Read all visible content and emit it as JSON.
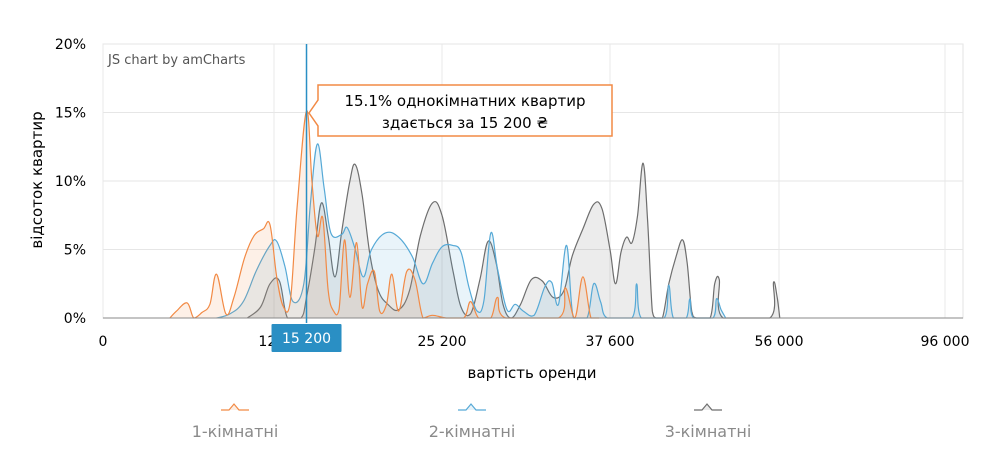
{
  "chart_data": {
    "type": "area",
    "watermark": "JS chart by amCharts",
    "xlabel": "вартість оренди",
    "ylabel": "відсоток квартир",
    "y_ticks": [
      "0%",
      "5%",
      "10%",
      "15%",
      "20%"
    ],
    "ylim": [
      0,
      20
    ],
    "x_tick_labels": [
      "0",
      "12 8",
      "25 200",
      "37 600",
      "56 000",
      "96 000"
    ],
    "grid": true,
    "legend_position": "bottom",
    "cursor": {
      "value": 15200,
      "label": "15 200"
    },
    "tooltip": {
      "line1": "15.1% однокімнатних квартир",
      "line2": "здається за 15 200 ₴"
    },
    "colors": {
      "1-кімнатні": "#f28a45",
      "2-кімнатні": "#56a9d6",
      "3-кімнатні": "#6e6e6e",
      "cursor": "#2a8fc4",
      "cursor_label_bg": "#2a8fc4"
    },
    "series": [
      {
        "name": "1-кімнатні",
        "points": [
          [
            5000,
            0
          ],
          [
            5500,
            0.5
          ],
          [
            6300,
            1.1
          ],
          [
            6800,
            0
          ],
          [
            7400,
            0.4
          ],
          [
            8000,
            1
          ],
          [
            8500,
            3.2
          ],
          [
            9200,
            0.3
          ],
          [
            9800,
            1.5
          ],
          [
            10600,
            4.4
          ],
          [
            11300,
            6
          ],
          [
            12000,
            6.5
          ],
          [
            12500,
            6.8
          ],
          [
            13000,
            3
          ],
          [
            13500,
            0.8
          ],
          [
            14000,
            1.2
          ],
          [
            14500,
            8
          ],
          [
            15200,
            15.1
          ],
          [
            15600,
            10
          ],
          [
            16000,
            6
          ],
          [
            16400,
            7.3
          ],
          [
            16800,
            2
          ],
          [
            17200,
            0.5
          ],
          [
            17600,
            0.6
          ],
          [
            18000,
            5.7
          ],
          [
            18400,
            1.5
          ],
          [
            18900,
            5.5
          ],
          [
            19300,
            0.8
          ],
          [
            19700,
            2.5
          ],
          [
            20200,
            3.4
          ],
          [
            20600,
            0.5
          ],
          [
            21100,
            1
          ],
          [
            21500,
            3.2
          ],
          [
            22000,
            0.5
          ],
          [
            22600,
            3.4
          ],
          [
            23200,
            2.8
          ],
          [
            23800,
            0
          ],
          [
            24500,
            0.2
          ],
          [
            25500,
            0
          ],
          [
            26800,
            0
          ],
          [
            27300,
            1.2
          ],
          [
            27900,
            0
          ],
          [
            28800,
            0
          ],
          [
            29300,
            1.5
          ],
          [
            29900,
            0
          ],
          [
            33800,
            0
          ],
          [
            34300,
            2.2
          ],
          [
            35000,
            0
          ],
          [
            35600,
            3
          ],
          [
            36200,
            0
          ],
          [
            36800,
            0
          ]
        ]
      },
      {
        "name": "2-кімнатні",
        "points": [
          [
            8500,
            0
          ],
          [
            9500,
            0.3
          ],
          [
            10500,
            1.2
          ],
          [
            11500,
            3.5
          ],
          [
            12500,
            5.3
          ],
          [
            13000,
            5.6
          ],
          [
            13600,
            3.8
          ],
          [
            14200,
            1.2
          ],
          [
            15000,
            2.5
          ],
          [
            15500,
            8.5
          ],
          [
            16000,
            12.7
          ],
          [
            16500,
            9.5
          ],
          [
            17000,
            6.2
          ],
          [
            17800,
            6.1
          ],
          [
            18200,
            6.6
          ],
          [
            18800,
            5
          ],
          [
            19400,
            3
          ],
          [
            20000,
            5
          ],
          [
            21000,
            6.2
          ],
          [
            22000,
            5.9
          ],
          [
            23000,
            4.5
          ],
          [
            23800,
            2.5
          ],
          [
            24500,
            4
          ],
          [
            25200,
            5.2
          ],
          [
            26000,
            5.3
          ],
          [
            26600,
            4.8
          ],
          [
            27200,
            2.2
          ],
          [
            27800,
            0.5
          ],
          [
            28300,
            1.3
          ],
          [
            28800,
            6.2
          ],
          [
            29300,
            3.6
          ],
          [
            30000,
            0.6
          ],
          [
            30600,
            1
          ],
          [
            31200,
            0.5
          ],
          [
            32000,
            0.2
          ],
          [
            32800,
            2.3
          ],
          [
            33300,
            2.6
          ],
          [
            33800,
            1
          ],
          [
            34400,
            5.3
          ],
          [
            34900,
            0
          ],
          [
            35900,
            0
          ],
          [
            36400,
            2.5
          ],
          [
            36900,
            1.2
          ],
          [
            37400,
            0
          ],
          [
            40000,
            0
          ],
          [
            40500,
            2.5
          ],
          [
            41000,
            0
          ],
          [
            43500,
            0
          ],
          [
            44000,
            2.4
          ],
          [
            44500,
            0
          ],
          [
            45900,
            0
          ],
          [
            46300,
            1.4
          ],
          [
            46700,
            0
          ],
          [
            48800,
            0
          ],
          [
            49200,
            1.4
          ],
          [
            49700,
            0.6
          ],
          [
            50200,
            0
          ]
        ]
      },
      {
        "name": "3-кімнатні",
        "points": [
          [
            10800,
            0
          ],
          [
            11800,
            0.8
          ],
          [
            12500,
            2.5
          ],
          [
            13200,
            2.7
          ],
          [
            13800,
            0
          ],
          [
            14800,
            0
          ],
          [
            15200,
            1.5
          ],
          [
            15800,
            5
          ],
          [
            16300,
            8.4
          ],
          [
            16800,
            6
          ],
          [
            17300,
            3
          ],
          [
            17800,
            6.3
          ],
          [
            18400,
            10
          ],
          [
            18800,
            11.2
          ],
          [
            19300,
            9
          ],
          [
            19900,
            4.5
          ],
          [
            20500,
            2
          ],
          [
            21200,
            1
          ],
          [
            22000,
            0.6
          ],
          [
            22800,
            2
          ],
          [
            23600,
            6
          ],
          [
            24500,
            8.4
          ],
          [
            25200,
            7.5
          ],
          [
            26000,
            3.5
          ],
          [
            26600,
            0.8
          ],
          [
            27300,
            0.3
          ],
          [
            28000,
            2.8
          ],
          [
            28600,
            5.6
          ],
          [
            29200,
            4
          ],
          [
            29700,
            1
          ],
          [
            30300,
            0
          ],
          [
            31000,
            1
          ],
          [
            31800,
            2.8
          ],
          [
            32600,
            2.7
          ],
          [
            33400,
            1.5
          ],
          [
            34200,
            2
          ],
          [
            34800,
            4.5
          ],
          [
            35600,
            6.5
          ],
          [
            36400,
            8.3
          ],
          [
            37000,
            8
          ],
          [
            37600,
            5
          ],
          [
            38200,
            2.5
          ],
          [
            38800,
            4.8
          ],
          [
            39400,
            5.9
          ],
          [
            40000,
            5.5
          ],
          [
            40600,
            7.5
          ],
          [
            41200,
            11.3
          ],
          [
            41700,
            7
          ],
          [
            42200,
            0.5
          ],
          [
            42600,
            0
          ],
          [
            43300,
            0
          ],
          [
            44000,
            2.5
          ],
          [
            44800,
            4.5
          ],
          [
            45500,
            5.7
          ],
          [
            46000,
            4
          ],
          [
            46500,
            0.5
          ],
          [
            47000,
            0
          ],
          [
            48500,
            0
          ],
          [
            49000,
            2.5
          ],
          [
            49500,
            2.8
          ],
          [
            49900,
            0
          ],
          [
            55000,
            0
          ],
          [
            55400,
            2.6
          ],
          [
            55800,
            1.5
          ],
          [
            56200,
            0
          ]
        ]
      }
    ]
  }
}
